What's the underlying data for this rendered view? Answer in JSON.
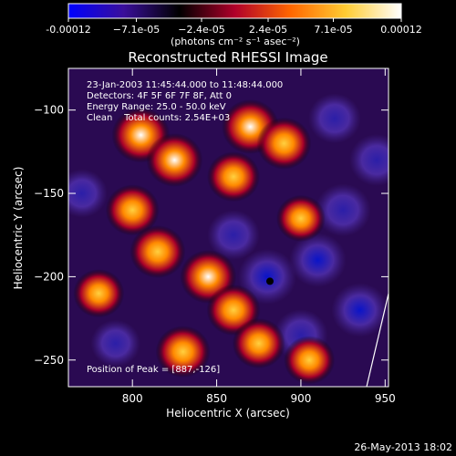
{
  "colorbar": {
    "colors": [
      "#0000ff",
      "#3a0f9a",
      "#000000",
      "#b0002a",
      "#ff6600",
      "#ffcc33",
      "#ffffff"
    ],
    "ticks": [
      "-0.00012",
      "−7.1e-05",
      "−2.4e-05",
      "2.4e-05",
      "7.1e-05",
      "0.00012"
    ],
    "tick_values": [
      -0.00012,
      -7.1e-05,
      -2.4e-05,
      2.4e-05,
      7.1e-05,
      0.00012
    ],
    "range": [
      -0.00012,
      0.00012
    ]
  },
  "chart_data": {
    "type": "heatmap",
    "title": "Reconstructed RHESSI Image",
    "units": "(photons cm⁻² s⁻¹ asec⁻²)",
    "xlabel": "Heliocentric X (arcsec)",
    "ylabel": "Heliocentric Y (arcsec)",
    "xlim": [
      762,
      952
    ],
    "ylim": [
      -266,
      -75
    ],
    "xticks": [
      800,
      850,
      900,
      950
    ],
    "yticks": [
      -100,
      -150,
      -200,
      -250
    ],
    "peak": {
      "x": 887,
      "y": -126
    },
    "bright_sources": [
      {
        "x": 805,
        "y": -115,
        "v": 1.0
      },
      {
        "x": 825,
        "y": -130,
        "v": 0.9
      },
      {
        "x": 870,
        "y": -110,
        "v": 0.95
      },
      {
        "x": 890,
        "y": -120,
        "v": 0.8
      },
      {
        "x": 860,
        "y": -140,
        "v": 0.7
      },
      {
        "x": 800,
        "y": -160,
        "v": 0.75
      },
      {
        "x": 815,
        "y": -185,
        "v": 0.85
      },
      {
        "x": 845,
        "y": -200,
        "v": 0.9
      },
      {
        "x": 860,
        "y": -220,
        "v": 0.75
      },
      {
        "x": 830,
        "y": -245,
        "v": 0.8
      },
      {
        "x": 875,
        "y": -240,
        "v": 0.7
      },
      {
        "x": 780,
        "y": -210,
        "v": 0.6
      },
      {
        "x": 900,
        "y": -165,
        "v": 0.5
      },
      {
        "x": 905,
        "y": -250,
        "v": 0.6
      }
    ],
    "dark_sources": [
      {
        "x": 880,
        "y": -200,
        "v": -1.0
      },
      {
        "x": 910,
        "y": -190,
        "v": -0.9
      },
      {
        "x": 925,
        "y": -160,
        "v": -0.8
      },
      {
        "x": 935,
        "y": -220,
        "v": -0.9
      },
      {
        "x": 900,
        "y": -235,
        "v": -0.7
      },
      {
        "x": 945,
        "y": -130,
        "v": -0.75
      },
      {
        "x": 860,
        "y": -175,
        "v": -0.6
      },
      {
        "x": 920,
        "y": -105,
        "v": -0.6
      },
      {
        "x": 770,
        "y": -150,
        "v": -0.5
      },
      {
        "x": 790,
        "y": -240,
        "v": -0.4
      }
    ]
  },
  "overlay": {
    "time_line": "23-Jan-2003 11:45:44.000 to 11:48:44.000",
    "detectors_line": "Detectors: 4F 5F 6F 7F 8F, Att 0",
    "energy_line": "Energy Range: 25.0 - 50.0 keV",
    "method_line": "Clean    Total counts: 2.54E+03",
    "peak_line": "Position of Peak = [887,-126]"
  },
  "footer": {
    "timestamp": "26-May-2013 18:02"
  }
}
